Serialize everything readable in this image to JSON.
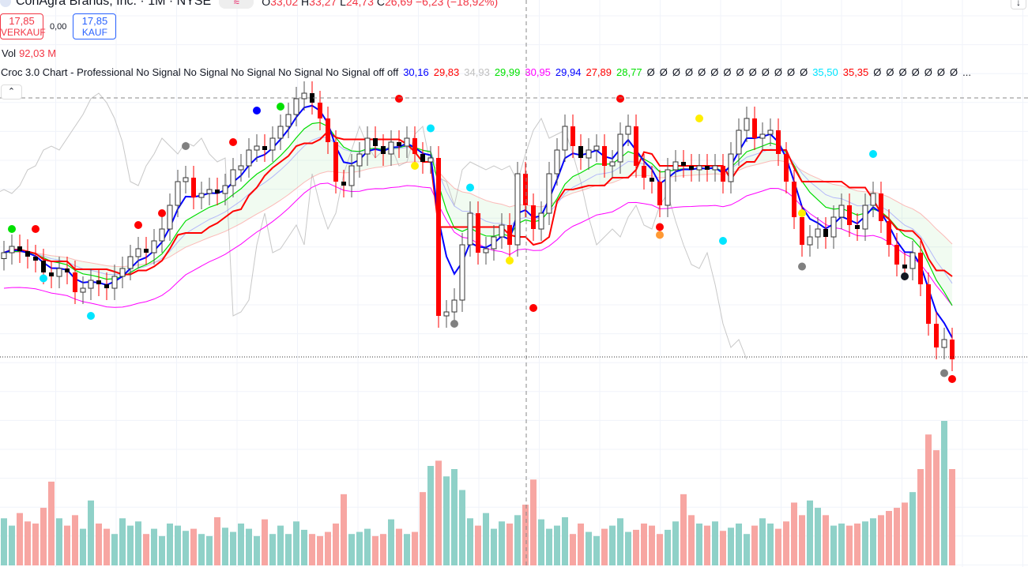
{
  "header": {
    "symbol": "ConAgra Brands, Inc. · 1M · NYSE",
    "badge": "≈",
    "o_label": "O",
    "o": "33,02",
    "h_label": "H",
    "h": "33,27",
    "l_label": "L",
    "l": "24,73",
    "c_label": "C",
    "c": "26,69",
    "change": "−6,23 (−18,92%)"
  },
  "trade": {
    "sell_price": "17,85",
    "sell_label": "VERKAUF",
    "spread": "0,00",
    "buy_price": "17,85",
    "buy_label": "KAUF"
  },
  "volume": {
    "label": "Vol",
    "value": "92,03 M"
  },
  "indicator": {
    "title": "Croc 3.0 Chart - Professional No Signal No Signal No Signal No Signal No Signal off off",
    "values": [
      {
        "v": "30,16",
        "color": "#0000ff"
      },
      {
        "v": "29,83",
        "color": "#ff0000"
      },
      {
        "v": "34,93",
        "color": "#c0c0c0"
      },
      {
        "v": "29,99",
        "color": "#00e000"
      },
      {
        "v": "30,95",
        "color": "#ff00ff"
      },
      {
        "v": "29,94",
        "color": "#0000ff"
      },
      {
        "v": "27,89",
        "color": "#ff0000"
      },
      {
        "v": "28,77",
        "color": "#00e000"
      },
      {
        "v": "Ø",
        "color": "#131722"
      },
      {
        "v": "Ø",
        "color": "#131722"
      },
      {
        "v": "Ø",
        "color": "#131722"
      },
      {
        "v": "Ø",
        "color": "#131722"
      },
      {
        "v": "Ø",
        "color": "#131722"
      },
      {
        "v": "Ø",
        "color": "#131722"
      },
      {
        "v": "Ø",
        "color": "#131722"
      },
      {
        "v": "Ø",
        "color": "#131722"
      },
      {
        "v": "Ø",
        "color": "#131722"
      },
      {
        "v": "Ø",
        "color": "#131722"
      },
      {
        "v": "Ø",
        "color": "#131722"
      },
      {
        "v": "Ø",
        "color": "#131722"
      },
      {
        "v": "Ø",
        "color": "#131722"
      },
      {
        "v": "35,50",
        "color": "#00e5ff"
      },
      {
        "v": "35,35",
        "color": "#ff0000"
      },
      {
        "v": "Ø",
        "color": "#131722"
      },
      {
        "v": "Ø",
        "color": "#131722"
      },
      {
        "v": "Ø",
        "color": "#131722"
      },
      {
        "v": "Ø",
        "color": "#131722"
      },
      {
        "v": "Ø",
        "color": "#131722"
      },
      {
        "v": "Ø",
        "color": "#131722"
      },
      {
        "v": "Ø",
        "color": "#131722"
      },
      {
        "v": "...",
        "color": "#131722"
      }
    ]
  },
  "controls": {
    "collapse": "⌃",
    "scroll": "↓"
  },
  "colors": {
    "up_volume": "#8fd1c8",
    "down_volume": "#f7a6a2",
    "up_candle": "#00e000",
    "down_candle": "#ff0000",
    "blue": "#0000ff",
    "red": "#ff0000",
    "green": "#00dd00",
    "magenta": "#ff00ff",
    "grey": "#c8c8c8"
  },
  "chart_data": {
    "type": "candlestick",
    "timeframe": "1M",
    "ylim": [
      24.5,
      36
    ],
    "close": [
      29.35,
      29.51,
      29.39,
      29.25,
      29.15,
      28.85,
      28.75,
      28.95,
      28.85,
      28.35,
      28.45,
      28.65,
      28.55,
      28.45,
      28.75,
      28.95,
      29.25,
      29.45,
      29.35,
      29.65,
      29.95,
      30.55,
      31.15,
      31.25,
      30.75,
      30.85,
      30.95,
      30.85,
      31.05,
      31.45,
      31.55,
      31.95,
      32.05,
      31.95,
      32.25,
      32.55,
      32.85,
      33.25,
      33.39,
      33.15,
      32.75,
      32.15,
      31.15,
      31.05,
      31.55,
      31.85,
      32.25,
      32.05,
      31.85,
      32.15,
      32.05,
      32.25,
      31.85,
      31.65,
      31.75,
      27.75,
      27.85,
      28.15,
      29.55,
      30.35,
      29.35,
      29.45,
      29.75,
      30.05,
      29.55,
      31.35,
      30.55,
      29.95,
      30.35,
      31.35,
      31.95,
      32.55,
      32.05,
      31.75,
      31.95,
      32.05,
      31.55,
      31.65,
      32.35,
      32.55,
      31.55,
      31.25,
      31.15,
      30.55,
      31.45,
      31.65,
      31.55,
      31.45,
      31.55,
      31.45,
      31.55,
      31.15,
      31.85,
      32.45,
      32.75,
      32.25,
      32.35,
      32.45,
      31.85,
      31.15,
      30.25,
      29.55,
      29.75,
      29.95,
      29.75,
      30.25,
      30.55,
      30.05,
      29.95,
      30.55,
      30.85,
      30.15,
      29.55,
      29.05,
      28.95,
      29.35,
      28.55,
      27.55,
      26.95,
      27.15,
      26.65
    ],
    "volume_m": [
      45,
      38,
      50,
      42,
      40,
      55,
      80,
      45,
      38,
      48,
      35,
      62,
      40,
      35,
      30,
      45,
      38,
      42,
      30,
      35,
      28,
      40,
      38,
      33,
      35,
      30,
      28,
      46,
      36,
      32,
      40,
      35,
      28,
      44,
      30,
      38,
      30,
      42,
      34,
      30,
      28,
      32,
      40,
      68,
      30,
      32,
      35,
      28,
      30,
      44,
      35,
      30,
      32,
      70,
      95,
      100,
      85,
      92,
      72,
      45,
      38,
      50,
      35,
      42,
      40,
      48,
      58,
      82,
      44,
      35,
      38,
      46,
      30,
      40,
      32,
      28,
      35,
      38,
      45,
      32,
      34,
      40,
      38,
      30,
      34,
      42,
      68,
      48,
      40,
      38,
      42,
      33,
      36,
      40,
      30,
      38,
      45,
      40,
      35,
      42,
      60,
      48,
      62,
      55,
      48,
      38,
      40,
      38,
      40,
      42,
      45,
      48,
      52,
      55,
      60,
      70,
      92,
      125,
      110,
      138,
      92
    ],
    "markers": [
      {
        "i": 1,
        "p": 29.95,
        "color": "#00e000"
      },
      {
        "i": 4,
        "p": 29.95,
        "color": "#ff0000"
      },
      {
        "i": 5,
        "p": 28.7,
        "color": "#00e5ff"
      },
      {
        "i": 11,
        "p": 27.75,
        "color": "#00e5ff"
      },
      {
        "i": 17,
        "p": 30.05,
        "color": "#ff0000"
      },
      {
        "i": 20,
        "p": 30.35,
        "color": "#ff0000"
      },
      {
        "i": 23,
        "p": 32.05,
        "color": "#808080"
      },
      {
        "i": 29,
        "p": 32.15,
        "color": "#ff0000"
      },
      {
        "i": 32,
        "p": 32.95,
        "color": "#0000ff"
      },
      {
        "i": 35,
        "p": 33.05,
        "color": "#00e000"
      },
      {
        "i": 50,
        "p": 33.25,
        "color": "#ff0000"
      },
      {
        "i": 52,
        "p": 31.55,
        "color": "#ffee00"
      },
      {
        "i": 54,
        "p": 32.5,
        "color": "#00e5ff"
      },
      {
        "i": 57,
        "p": 27.55,
        "color": "#808080"
      },
      {
        "i": 59,
        "p": 31.0,
        "color": "#00e5ff"
      },
      {
        "i": 64,
        "p": 29.15,
        "color": "#ffee00"
      },
      {
        "i": 67,
        "p": 27.95,
        "color": "#ff0000"
      },
      {
        "i": 78,
        "p": 33.25,
        "color": "#ff0000"
      },
      {
        "i": 83,
        "p": 30.0,
        "color": "#ff0000"
      },
      {
        "i": 83,
        "p": 29.8,
        "color": "#ff9933"
      },
      {
        "i": 88,
        "p": 32.75,
        "color": "#ffee00"
      },
      {
        "i": 91,
        "p": 29.65,
        "color": "#00e5ff"
      },
      {
        "i": 101,
        "p": 29.0,
        "color": "#808080"
      },
      {
        "i": 101,
        "p": 30.35,
        "color": "#ffee00"
      },
      {
        "i": 110,
        "p": 31.85,
        "color": "#00e5ff"
      },
      {
        "i": 114,
        "p": 28.75,
        "color": "#131722"
      },
      {
        "i": 119,
        "p": 26.3,
        "color": "#808080"
      },
      {
        "i": 120,
        "p": 26.15,
        "color": "#ff0000"
      }
    ]
  }
}
